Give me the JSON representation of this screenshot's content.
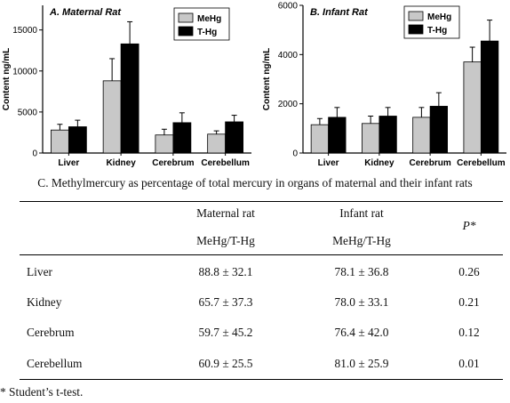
{
  "chart_data": [
    {
      "type": "bar",
      "title": "A. Maternal Rat",
      "ylabel": "Content ng/mL",
      "xlabel": "",
      "categories": [
        "Liver",
        "Kidney",
        "Cerebrum",
        "Cerebellum"
      ],
      "series": [
        {
          "name": "MeHg",
          "color": "#c8c8c8",
          "values": [
            2800,
            8800,
            2200,
            2300
          ],
          "errors": [
            700,
            2700,
            700,
            400
          ]
        },
        {
          "name": "T-Hg",
          "color": "#000000",
          "values": [
            3200,
            13300,
            3700,
            3800
          ],
          "errors": [
            800,
            2700,
            1200,
            800
          ]
        }
      ],
      "ylim": [
        0,
        18000
      ],
      "yticks": [
        0,
        5000,
        10000,
        15000
      ],
      "legend": "top-right",
      "grid": false
    },
    {
      "type": "bar",
      "title": "B. Infant Rat",
      "ylabel": "Content ng/mL",
      "xlabel": "",
      "categories": [
        "Liver",
        "Kidney",
        "Cerebrum",
        "Cerebellum"
      ],
      "series": [
        {
          "name": "MeHg",
          "color": "#c8c8c8",
          "values": [
            1150,
            1200,
            1450,
            3700
          ],
          "errors": [
            250,
            300,
            400,
            600
          ]
        },
        {
          "name": "T-Hg",
          "color": "#000000",
          "values": [
            1450,
            1500,
            1900,
            4550
          ],
          "errors": [
            400,
            350,
            550,
            850
          ]
        }
      ],
      "ylim": [
        0,
        6000
      ],
      "yticks": [
        0,
        2000,
        4000,
        6000
      ],
      "legend": "top-right",
      "grid": false
    }
  ],
  "table": {
    "caption": "C. Methylmercury as percentage of total mercury in organs of maternal and their infant rats",
    "header": {
      "col1_line1": "Maternal rat",
      "col1_line2": "MeHg/T-Hg",
      "col2_line1": "Infant rat",
      "col2_line2": "MeHg/T-Hg",
      "col3": "P*"
    },
    "rows": [
      {
        "organ": "Liver",
        "maternal": "88.8 ± 32.1",
        "infant": "78.1 ± 36.8",
        "p": "0.26"
      },
      {
        "organ": "Kidney",
        "maternal": "65.7 ± 37.3",
        "infant": "78.0 ± 33.1",
        "p": "0.21"
      },
      {
        "organ": "Cerebrum",
        "maternal": "59.7 ± 45.2",
        "infant": "76.4 ± 42.0",
        "p": "0.12"
      },
      {
        "organ": "Cerebellum",
        "maternal": "60.9 ± 25.5",
        "infant": "81.0 ± 25.9",
        "p": "0.01"
      }
    ],
    "footnote": "* Student’s t-test."
  }
}
